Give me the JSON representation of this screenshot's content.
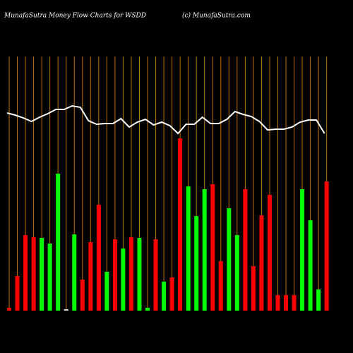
{
  "chart_data": {
    "type": "bar",
    "title": "MunafaSutra  Money Flow  Charts for WSDD",
    "subtitle": "(c) MunafaSutra.com",
    "values": [
      4,
      49,
      107,
      104,
      103,
      95,
      194,
      2,
      108,
      44,
      97,
      150,
      55,
      101,
      88,
      104,
      103,
      4,
      101,
      41,
      47,
      244,
      176,
      134,
      172,
      179,
      70,
      145,
      107,
      172,
      63,
      135,
      164,
      22,
      22,
      22,
      172,
      128,
      30,
      183
    ],
    "colors": [
      "#ff0000",
      "#ff0000",
      "#ff0000",
      "#ff0000",
      "#00ff00",
      "#00ff00",
      "#00ff00",
      "#dddddd",
      "#00ff00",
      "#ff0000",
      "#ff0000",
      "#ff0000",
      "#00ff00",
      "#ff0000",
      "#00ff00",
      "#ff0000",
      "#00ff00",
      "#00ff00",
      "#ff0000",
      "#00ff00",
      "#ff0000",
      "#ff0000",
      "#00ff00",
      "#00ff00",
      "#00ff00",
      "#ff0000",
      "#ff0000",
      "#00ff00",
      "#00ff00",
      "#ff0000",
      "#ff0000",
      "#ff0000",
      "#ff0000",
      "#ff0000",
      "#ff0000",
      "#ff0000",
      "#00ff00",
      "#00ff00",
      "#00ff00",
      "#ff0000"
    ],
    "line": {
      "color": "#ffffff",
      "values": [
        280,
        277,
        273,
        268,
        274,
        279,
        285,
        285,
        290,
        288,
        269,
        264,
        265,
        265,
        272,
        260,
        267,
        271,
        263,
        267,
        262,
        251,
        264,
        264,
        274,
        265,
        265,
        271,
        282,
        278,
        275,
        268,
        256,
        257,
        257,
        260,
        267,
        270,
        270,
        251
      ]
    },
    "gridline_color": "#c07000"
  }
}
